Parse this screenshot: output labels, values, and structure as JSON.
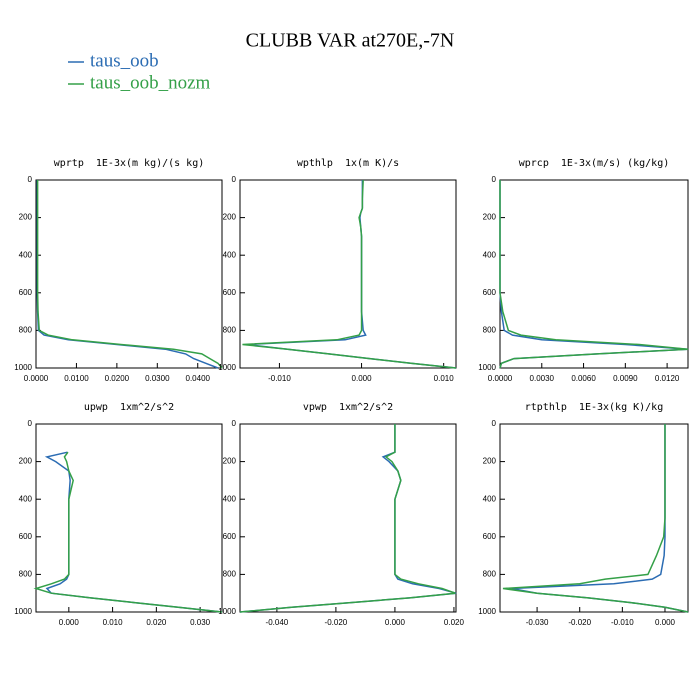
{
  "title": "CLUBB VAR at270E,-7N",
  "chart_data": [
    {
      "type": "line",
      "title": "wprtp  1E-3x(m kg)/(s kg)",
      "y": [
        0,
        100,
        150,
        175,
        200,
        250,
        300,
        400,
        500,
        600,
        700,
        800,
        825,
        850,
        875,
        900,
        925,
        950,
        975,
        1000
      ],
      "xlim": [
        0,
        0.046
      ],
      "ylim": [
        1000,
        0
      ],
      "xticks": [
        {
          "value": 0,
          "label": "0.0000"
        },
        {
          "value": 0.01,
          "label": "0.0100"
        },
        {
          "value": 0.02,
          "label": "0.0200"
        },
        {
          "value": 0.03,
          "label": "0.0300"
        },
        {
          "value": 0.04,
          "label": "0.0400"
        }
      ],
      "yticks": [
        0,
        200,
        400,
        600,
        800,
        1000
      ],
      "series": [
        {
          "name": "taus_oob",
          "color": "#2b6cb3",
          "values": [
            0.0003,
            0.0003,
            0.0003,
            0.0003,
            0.0003,
            0.0003,
            0.0003,
            0.0003,
            0.0003,
            0.0003,
            0.0004,
            0.0006,
            0.002,
            0.008,
            0.02,
            0.032,
            0.037,
            0.039,
            0.042,
            0.045
          ]
        },
        {
          "name": "taus_oob_nozm",
          "color": "#34a048",
          "values": [
            0.0004,
            0.0004,
            0.0004,
            0.0004,
            0.0004,
            0.0004,
            0.0004,
            0.0004,
            0.0004,
            0.0004,
            0.0005,
            0.0008,
            0.003,
            0.009,
            0.021,
            0.034,
            0.041,
            0.043,
            0.045,
            0.046
          ]
        }
      ]
    },
    {
      "type": "line",
      "title": "wpthlp  1x(m K)/s",
      "y": [
        0,
        100,
        150,
        175,
        200,
        250,
        300,
        400,
        500,
        600,
        700,
        800,
        825,
        850,
        875,
        900,
        925,
        950,
        975,
        1000
      ],
      "xlim": [
        -0.0148,
        0.0115
      ],
      "ylim": [
        1000,
        0
      ],
      "xticks": [
        {
          "value": -0.01,
          "label": "-0.010"
        },
        {
          "value": 0,
          "label": "0.000"
        },
        {
          "value": 0.01,
          "label": "0.010"
        }
      ],
      "yticks": [
        0,
        200,
        400,
        600,
        800,
        1000
      ],
      "series": [
        {
          "name": "taus_oob",
          "color": "#2b6cb3",
          "values": [
            0.0001,
            0.0001,
            0.0001,
            -0.0001,
            -0.0002,
            -0.0001,
            0.0,
            0.0,
            0.0,
            0.0,
            0.0,
            0.0002,
            0.0005,
            -0.002,
            -0.014,
            -0.009,
            -0.004,
            0.001,
            0.006,
            0.0115
          ]
        },
        {
          "name": "taus_oob_nozm",
          "color": "#34a048",
          "values": [
            0.0002,
            0.0001,
            0.0001,
            -0.0001,
            -0.0003,
            -0.0001,
            0.0,
            0.0,
            0.0,
            0.0,
            0.0,
            0.0,
            -0.0003,
            -0.003,
            -0.0145,
            -0.009,
            -0.004,
            0.001,
            0.006,
            0.0115
          ]
        }
      ]
    },
    {
      "type": "line",
      "title": "wprcp  1E-3x(m/s) (kg/kg)",
      "y": [
        0,
        100,
        150,
        175,
        200,
        250,
        300,
        400,
        500,
        600,
        700,
        800,
        825,
        850,
        875,
        900,
        925,
        950,
        975,
        1000
      ],
      "xlim": [
        0,
        0.0135
      ],
      "ylim": [
        1000,
        0
      ],
      "xticks": [
        {
          "value": 0,
          "label": "0.0000"
        },
        {
          "value": 0.003,
          "label": "0.0030"
        },
        {
          "value": 0.006,
          "label": "0.0060"
        },
        {
          "value": 0.009,
          "label": "0.0090"
        },
        {
          "value": 0.012,
          "label": "0.0120"
        }
      ],
      "yticks": [
        0,
        200,
        400,
        600,
        800,
        1000
      ],
      "series": [
        {
          "name": "taus_oob",
          "color": "#2b6cb3",
          "values": [
            0,
            0,
            0,
            0,
            0,
            0,
            0,
            0,
            0,
            0,
            0.0001,
            0.0003,
            0.0009,
            0.003,
            0.009,
            0.0135,
            0.007,
            0.001,
            0.0001,
            0
          ]
        },
        {
          "name": "taus_oob_nozm",
          "color": "#34a048",
          "values": [
            0,
            0,
            0,
            0,
            0,
            0,
            0,
            0,
            0,
            0,
            0.0002,
            0.0006,
            0.0015,
            0.004,
            0.01,
            0.0135,
            0.007,
            0.001,
            0.0001,
            0
          ]
        }
      ]
    },
    {
      "type": "line",
      "title": "upwp  1xm^2/s^2",
      "y": [
        0,
        100,
        150,
        175,
        200,
        250,
        300,
        400,
        500,
        600,
        700,
        800,
        825,
        850,
        875,
        900,
        925,
        950,
        975,
        1000
      ],
      "xlim": [
        -0.0075,
        0.035
      ],
      "ylim": [
        1000,
        0
      ],
      "xticks": [
        {
          "value": 0,
          "label": "0.000"
        },
        {
          "value": 0.01,
          "label": "0.010"
        },
        {
          "value": 0.02,
          "label": "0.020"
        },
        {
          "value": 0.03,
          "label": "0.030"
        }
      ],
      "yticks": [
        0,
        200,
        400,
        600,
        800,
        1000
      ],
      "series": [
        {
          "name": "taus_oob",
          "color": "#2b6cb3",
          "values": [
            null,
            null,
            -0.0003,
            -0.005,
            -0.003,
            0.0,
            0.0003,
            0.0,
            0.0,
            0.0,
            0.0,
            0.0,
            -0.0005,
            -0.002,
            -0.005,
            -0.004,
            0.005,
            0.015,
            0.025,
            0.035
          ]
        },
        {
          "name": "taus_oob_nozm",
          "color": "#34a048",
          "values": [
            null,
            null,
            -0.0002,
            -0.001,
            -0.0005,
            0.0,
            0.001,
            0.0,
            0.0,
            0.0,
            0.0,
            0.0,
            -0.001,
            -0.004,
            -0.0075,
            -0.004,
            0.005,
            0.015,
            0.025,
            0.035
          ]
        }
      ]
    },
    {
      "type": "line",
      "title": "vpwp  1xm^2/s^2",
      "y": [
        0,
        100,
        150,
        175,
        200,
        250,
        300,
        400,
        500,
        600,
        700,
        800,
        825,
        850,
        875,
        900,
        925,
        950,
        975,
        1000
      ],
      "xlim": [
        -0.0525,
        0.0207
      ],
      "ylim": [
        1000,
        0
      ],
      "xticks": [
        {
          "value": -0.04,
          "label": "-0.040"
        },
        {
          "value": -0.02,
          "label": "-0.020"
        },
        {
          "value": 0,
          "label": "0.000"
        },
        {
          "value": 0.02,
          "label": "0.020"
        }
      ],
      "yticks": [
        0,
        200,
        400,
        600,
        800,
        1000
      ],
      "series": [
        {
          "name": "taus_oob",
          "color": "#2b6cb3",
          "values": [
            0.0,
            0.0,
            0.0,
            -0.004,
            -0.002,
            0.001,
            0.002,
            0.0,
            0.0,
            0.0,
            0.0,
            0.0,
            0.001,
            0.006,
            0.015,
            0.0207,
            0.005,
            -0.015,
            -0.035,
            -0.0525
          ]
        },
        {
          "name": "taus_oob_nozm",
          "color": "#34a048",
          "values": [
            0.0,
            0.0,
            0.0,
            -0.003,
            -0.001,
            0.001,
            0.002,
            0.0,
            0.0,
            0.0,
            0.0,
            0.0,
            0.002,
            0.008,
            0.016,
            0.0205,
            0.005,
            -0.015,
            -0.035,
            -0.0525
          ]
        }
      ]
    },
    {
      "type": "line",
      "title": "rtpthlp  1E-3x(kg K)/kg",
      "y": [
        0,
        100,
        150,
        175,
        200,
        250,
        300,
        400,
        500,
        600,
        700,
        800,
        825,
        850,
        875,
        900,
        925,
        950,
        975,
        1000
      ],
      "xlim": [
        -0.0387,
        0.0054
      ],
      "ylim": [
        1000,
        0
      ],
      "xticks": [
        {
          "value": -0.03,
          "label": "-0.030"
        },
        {
          "value": -0.02,
          "label": "-0.020"
        },
        {
          "value": -0.01,
          "label": "-0.010"
        },
        {
          "value": 0,
          "label": "0.000"
        }
      ],
      "yticks": [
        0,
        200,
        400,
        600,
        800,
        1000
      ],
      "series": [
        {
          "name": "taus_oob",
          "color": "#2b6cb3",
          "values": [
            0,
            0,
            0,
            0,
            0,
            0,
            0,
            0,
            0,
            0,
            -0.0002,
            -0.001,
            -0.003,
            -0.012,
            -0.036,
            -0.03,
            -0.018,
            -0.008,
            0.0,
            0.0054
          ]
        },
        {
          "name": "taus_oob_nozm",
          "color": "#34a048",
          "values": [
            0,
            0,
            0,
            0,
            0,
            0,
            0,
            0,
            0,
            -0.0003,
            -0.002,
            -0.004,
            -0.014,
            -0.02,
            -0.038,
            -0.03,
            -0.018,
            -0.008,
            0.0,
            0.0054
          ]
        }
      ]
    }
  ]
}
